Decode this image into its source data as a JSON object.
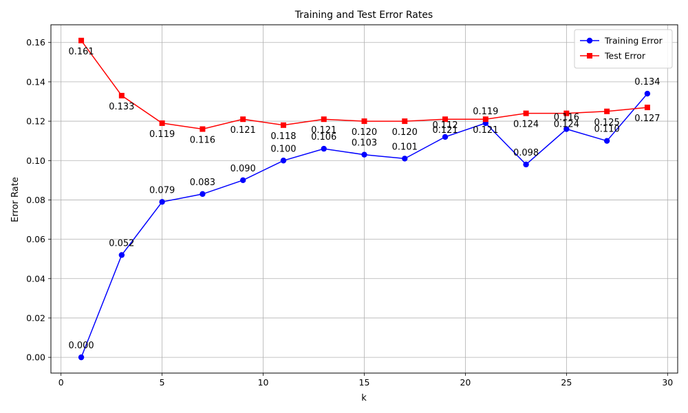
{
  "chart_data": {
    "type": "line",
    "title": "Training and Test Error Rates",
    "xlabel": "k",
    "ylabel": "Error Rate",
    "xlim": [
      -0.5,
      30.5
    ],
    "ylim": [
      -0.008,
      0.169
    ],
    "xticks": [
      0,
      5,
      10,
      15,
      20,
      25,
      30
    ],
    "yticks": [
      0.0,
      0.02,
      0.04,
      0.06,
      0.08,
      0.1,
      0.12,
      0.14,
      0.16
    ],
    "grid": true,
    "legend_position": "top-right",
    "x": [
      1,
      3,
      5,
      7,
      9,
      11,
      13,
      15,
      17,
      19,
      21,
      23,
      25,
      27,
      29
    ],
    "series": [
      {
        "name": "Training Error",
        "color": "#0000ff",
        "marker": "circle",
        "label_placement": "above",
        "values": [
          0.0,
          0.052,
          0.079,
          0.083,
          0.09,
          0.1,
          0.106,
          0.103,
          0.101,
          0.112,
          0.119,
          0.098,
          0.116,
          0.11,
          0.134
        ],
        "labels": [
          "0.000",
          "0.052",
          "0.079",
          "0.083",
          "0.090",
          "0.100",
          "0.106",
          "0.103",
          "0.101",
          "0.112",
          "0.119",
          "0.098",
          "0.116",
          "0.110",
          "0.134"
        ]
      },
      {
        "name": "Test Error",
        "color": "#ff0000",
        "marker": "square",
        "label_placement": "below",
        "values": [
          0.161,
          0.133,
          0.119,
          0.116,
          0.121,
          0.118,
          0.121,
          0.12,
          0.12,
          0.121,
          0.121,
          0.124,
          0.124,
          0.125,
          0.127
        ],
        "labels": [
          "0.161",
          "0.133",
          "0.119",
          "0.116",
          "0.121",
          "0.118",
          "0.121",
          "0.120",
          "0.120",
          "0.121",
          "0.121",
          "0.124",
          "0.124",
          "0.125",
          "0.127"
        ]
      }
    ]
  }
}
